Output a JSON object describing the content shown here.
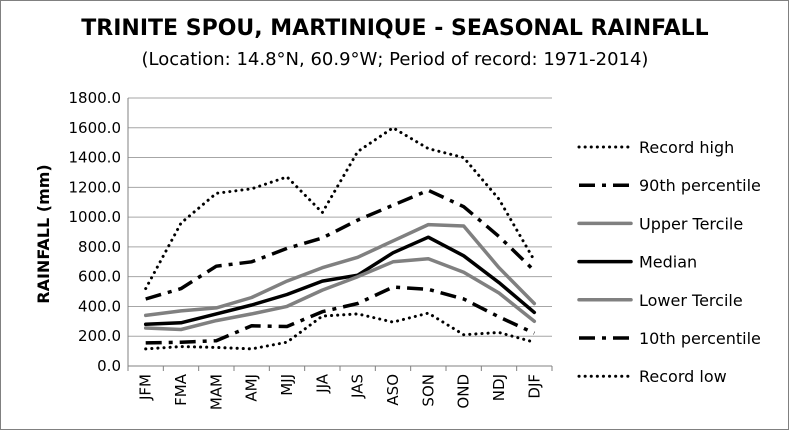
{
  "chart_data": {
    "type": "line",
    "title": "TRINITE SPOU, MARTINIQUE - SEASONAL RAINFALL",
    "subtitle": "(Location: 14.8°N, 60.9°W; Period of record: 1971-2014)",
    "xlabel": "",
    "ylabel": "RAINFALL (mm)",
    "ylim": [
      0,
      1800
    ],
    "ytick_labels": [
      "0.0",
      "200.0",
      "400.0",
      "600.0",
      "800.0",
      "1000.0",
      "1200.0",
      "1400.0",
      "1600.0",
      "1800.0"
    ],
    "categories": [
      "JFM",
      "FMA",
      "MAM",
      "AMJ",
      "MJJ",
      "JJA",
      "JAS",
      "ASO",
      "SON",
      "OND",
      "NDJ",
      "DJF"
    ],
    "grid": true,
    "legend_position": "right",
    "series": [
      {
        "name": "Record high",
        "style": "dotted",
        "color": "#000000",
        "values": [
          520,
          960,
          1160,
          1190,
          1270,
          1030,
          1440,
          1600,
          1460,
          1400,
          1120,
          710
        ]
      },
      {
        "name": "90th percentile",
        "style": "dashdot",
        "color": "#000000",
        "values": [
          450,
          520,
          670,
          700,
          790,
          860,
          980,
          1080,
          1180,
          1070,
          870,
          640
        ]
      },
      {
        "name": "Upper Tercile",
        "style": "solid",
        "color": "#808080",
        "values": [
          340,
          370,
          390,
          460,
          570,
          660,
          730,
          840,
          950,
          940,
          660,
          420
        ]
      },
      {
        "name": "Median",
        "style": "solid",
        "color": "#000000",
        "values": [
          280,
          290,
          350,
          410,
          480,
          570,
          610,
          760,
          865,
          740,
          560,
          360
        ]
      },
      {
        "name": "Lower Tercile",
        "style": "solid",
        "color": "#808080",
        "values": [
          255,
          245,
          305,
          350,
          400,
          510,
          600,
          700,
          720,
          630,
          490,
          300
        ]
      },
      {
        "name": "10th percentile",
        "style": "dashdot",
        "color": "#000000",
        "values": [
          155,
          160,
          170,
          270,
          265,
          365,
          420,
          530,
          515,
          450,
          330,
          220
        ]
      },
      {
        "name": "Record low",
        "style": "dotted",
        "color": "#000000",
        "values": [
          115,
          130,
          125,
          115,
          160,
          335,
          350,
          295,
          355,
          210,
          225,
          160
        ]
      }
    ]
  }
}
